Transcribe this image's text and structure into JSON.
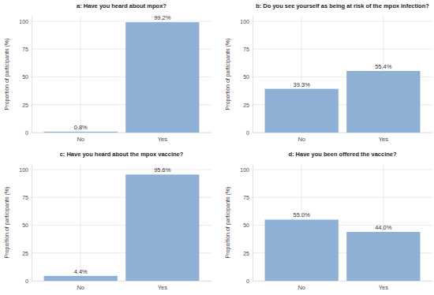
{
  "chart_data": [
    {
      "type": "bar",
      "title": "a: Have you heard about mpox?",
      "ylabel": "Proportion of participants (%)",
      "categories": [
        "No",
        "Yes"
      ],
      "values": [
        0.8,
        99.2
      ],
      "value_labels": [
        "0.8%",
        "99.2%"
      ],
      "color": "#8eb0d4",
      "ylim": [
        0,
        105
      ],
      "yticks": [
        0,
        25,
        50,
        75,
        100
      ],
      "grid": true,
      "data_labels": true
    },
    {
      "type": "bar",
      "title": "b: Do you see yourself as being at risk of the mpox infection?",
      "ylabel": "Proportion of participants (%)",
      "categories": [
        "No",
        "Yes"
      ],
      "values": [
        39.3,
        55.4
      ],
      "value_labels": [
        "39.3%",
        "55.4%"
      ],
      "color": "#8eb0d4",
      "ylim": [
        0,
        105
      ],
      "yticks": [
        0,
        25,
        50,
        75,
        100
      ],
      "grid": true,
      "data_labels": true
    },
    {
      "type": "bar",
      "title": "c: Have you heard about the mpox vaccine?",
      "ylabel": "Proportion of participants (%)",
      "categories": [
        "No",
        "Yes"
      ],
      "values": [
        4.4,
        95.6
      ],
      "value_labels": [
        "4.4%",
        "95.6%"
      ],
      "color": "#8eb0d4",
      "ylim": [
        0,
        105
      ],
      "yticks": [
        0,
        25,
        50,
        75,
        100
      ],
      "grid": true,
      "data_labels": true
    },
    {
      "type": "bar",
      "title": "d: Have you been offered the vaccine?",
      "ylabel": "Proportion of participants (%)",
      "categories": [
        "No",
        "Yes"
      ],
      "values": [
        55.0,
        44.0
      ],
      "value_labels": [
        "55.0%",
        "44.0%"
      ],
      "color": "#8eb0d4",
      "ylim": [
        0,
        105
      ],
      "yticks": [
        0,
        25,
        50,
        75,
        100
      ],
      "grid": true,
      "data_labels": true
    }
  ]
}
